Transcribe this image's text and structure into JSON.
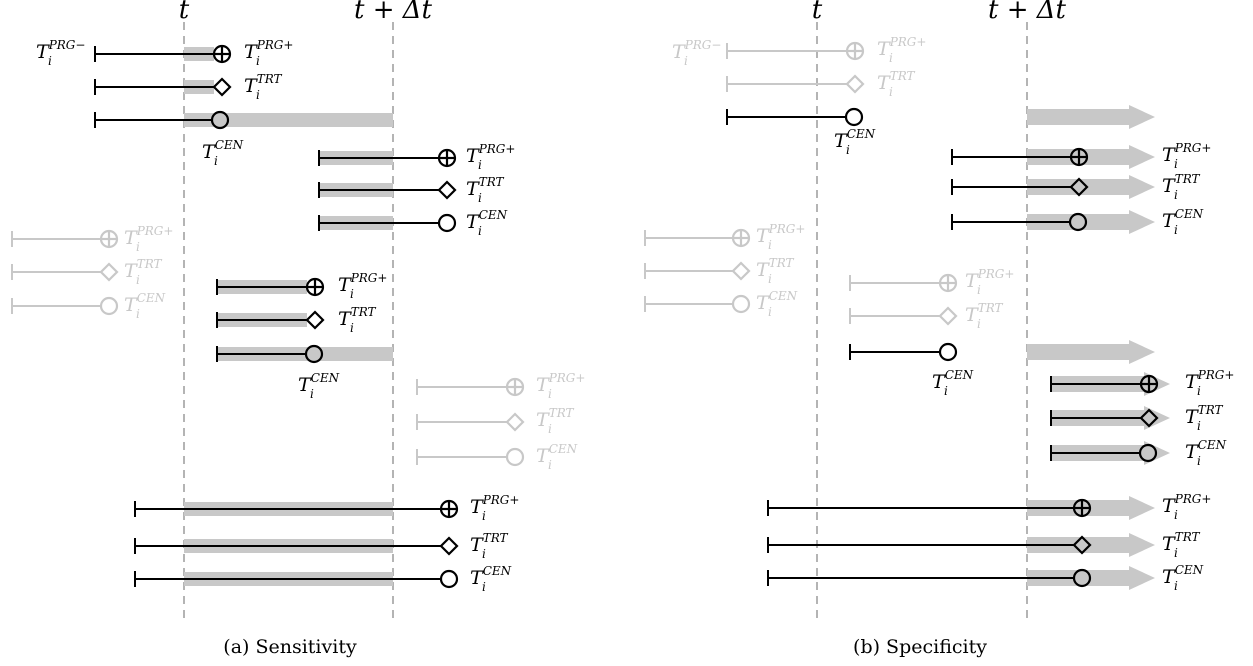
{
  "labels": {
    "t": "t",
    "t_plus_dt": "t + Δt",
    "T": "T",
    "i": "i",
    "prg_minus": "PRG−",
    "prg_plus": "PRG+",
    "trt": "TRT",
    "cen": "CEN"
  },
  "captions": {
    "a": "(a) Sensitivity",
    "b": "(b) Specificity"
  },
  "colors": {
    "line": "#000000",
    "faded": "#c8c8c8",
    "band": "#c8c8c8",
    "guide": "#b4b4b4"
  }
}
